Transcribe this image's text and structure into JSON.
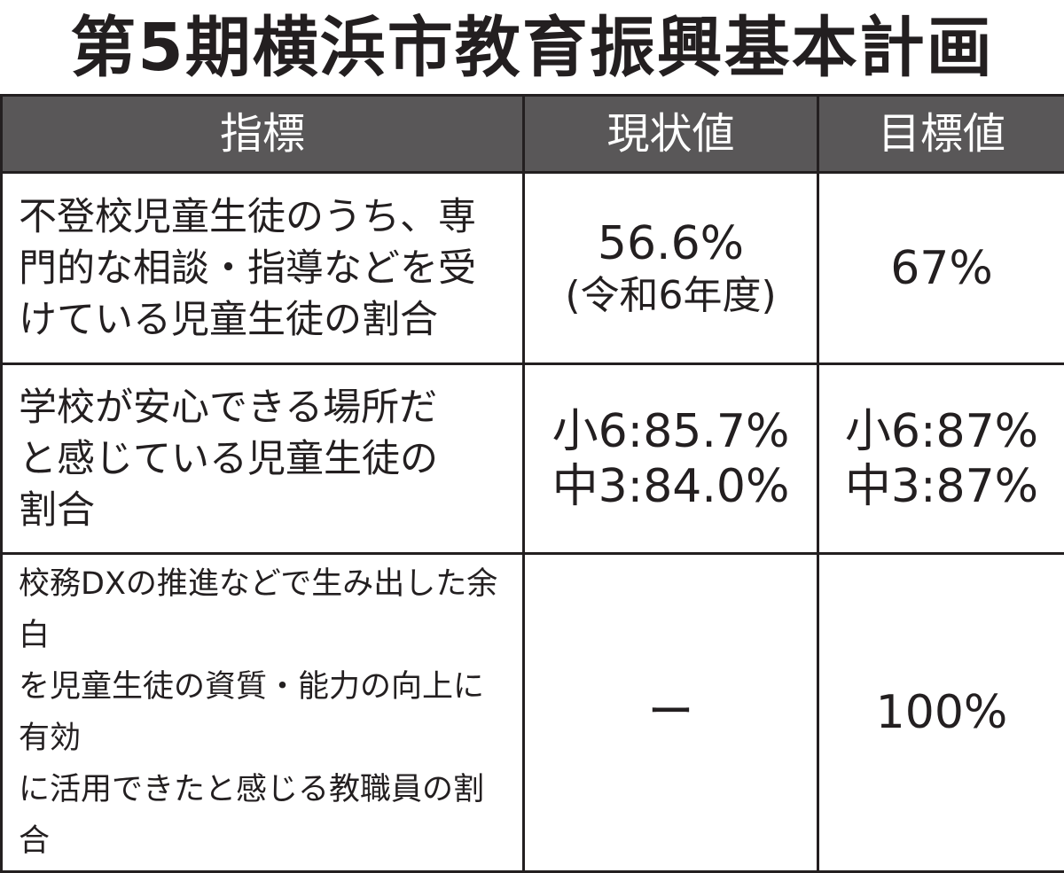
{
  "title": "第5期横浜市教育振興基本計画",
  "table": {
    "headers": [
      "指標",
      "現状値",
      "目標値"
    ],
    "rows": [
      {
        "indicator": "不登校児童生徒のうち、専\n門的な相談・指導などを受\nけている児童生徒の割合",
        "current": "56.6%",
        "current_note": "(令和6年度)",
        "target": "67%"
      },
      {
        "indicator": "学校が安心できる場所だ\nと感じている児童生徒の\n割合",
        "current": "小6:85.7%\n中3:84.0%",
        "target": "小6:87%\n中3:87%"
      },
      {
        "indicator": "校務DXの推進などで生み出した余白\nを児童生徒の資質・能力の向上に有効\nに活用できたと感じる教職員の割合",
        "current": "ー",
        "target": "100%"
      }
    ]
  }
}
